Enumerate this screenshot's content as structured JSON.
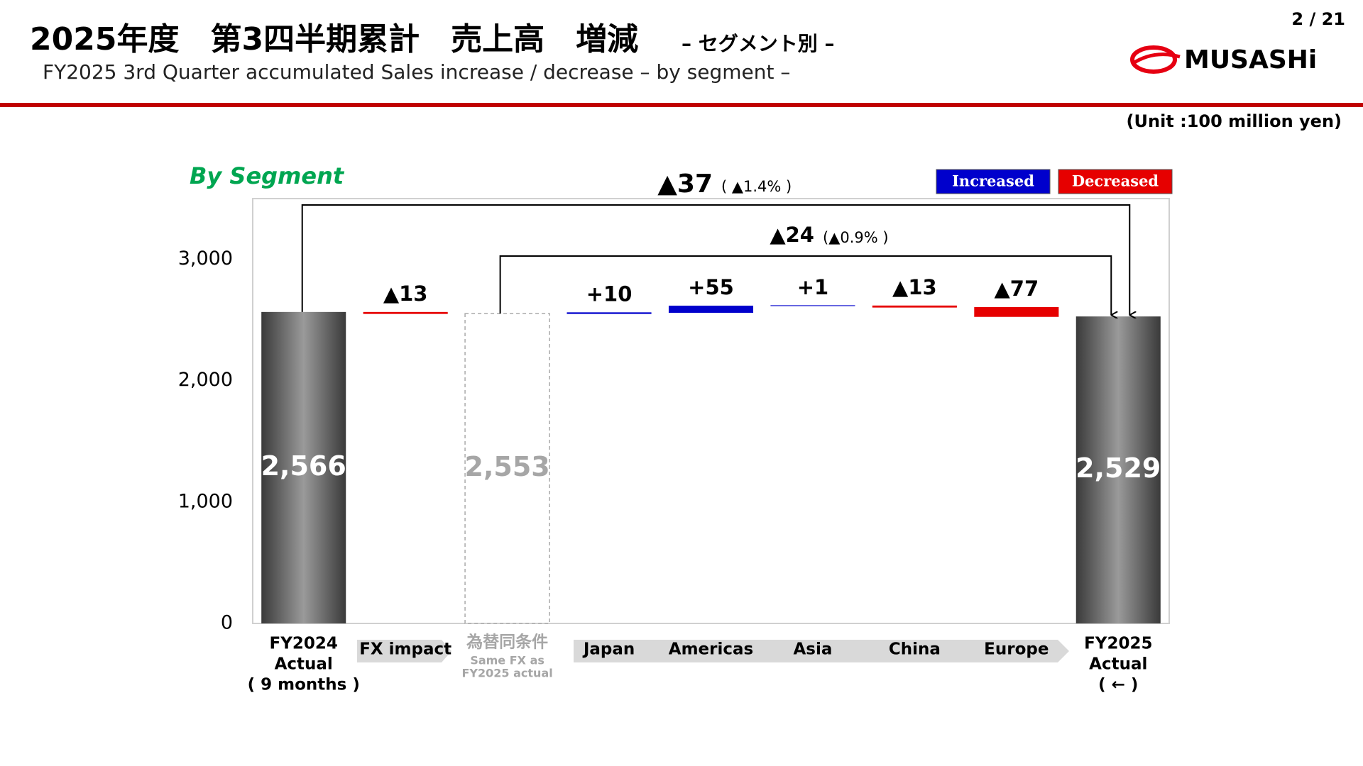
{
  "header": {
    "title": "2025年度　第3四半期累計　売上高　増減",
    "title_suffix": "– セグメント別 –",
    "subtitle": "FY2025  3rd  Quarter  accumulated   Sales  increase / decrease  –  by  segment   –",
    "page": "2  /  21",
    "logo": "MUSASHi",
    "unit": "(Unit :100 million yen)"
  },
  "chart_data": {
    "type": "waterfall",
    "title": "By Segment",
    "categories": [
      [
        "FY2024",
        "Actual",
        "( 9 months )"
      ],
      [
        "FX impact"
      ],
      [
        "為替同条件",
        "Same FX as",
        "FY2025 actual"
      ],
      [
        "Japan"
      ],
      [
        "Americas"
      ],
      [
        "Asia"
      ],
      [
        "China"
      ],
      [
        "Europe"
      ],
      [
        "FY2025",
        "Actual",
        "( ← )"
      ]
    ],
    "measure": [
      "total",
      "relative",
      "reference",
      "relative",
      "relative",
      "relative",
      "relative",
      "relative",
      "total"
    ],
    "values": [
      2566,
      -13,
      2553,
      10,
      55,
      1,
      -13,
      -77,
      2529
    ],
    "value_labels": [
      "2,566",
      "▲13",
      "2,553",
      "+10",
      "+55",
      "+1",
      "▲13",
      "▲77",
      "2,529"
    ],
    "increase": {
      "name": "Increased",
      "color": "#0000cc"
    },
    "decrease": {
      "name": "Decreased",
      "color": "#e60000"
    },
    "annotations": [
      {
        "value": -37,
        "label": "▲37",
        "pct": {
          "value": -1.4,
          "label": "( ▲1.4% )"
        }
      },
      {
        "value": -24,
        "label": "▲24",
        "pct": {
          "value": -0.9,
          "label": "(▲0.9% )"
        }
      }
    ],
    "ylim": [
      0,
      3500
    ],
    "yticks": [
      0,
      {
        "value": 1000,
        "label": "1,000"
      },
      {
        "value": 2000,
        "label": "2,000"
      },
      {
        "value": 3000,
        "label": "3,000"
      }
    ],
    "grid": false
  }
}
